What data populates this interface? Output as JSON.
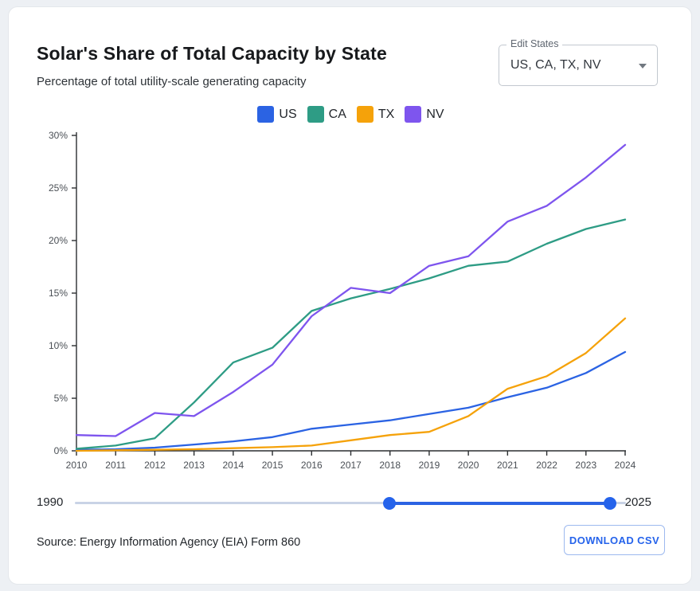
{
  "header": {
    "title": "Solar's Share of Total Capacity by State",
    "subtitle": "Percentage of total utility-scale generating capacity"
  },
  "edit_states": {
    "label": "Edit States",
    "value": "US, CA, TX, NV"
  },
  "chart_data": {
    "type": "line",
    "title": "Solar's Share of Total Capacity by State",
    "x": [
      2010,
      2011,
      2012,
      2013,
      2014,
      2015,
      2016,
      2017,
      2018,
      2019,
      2020,
      2021,
      2022,
      2023,
      2024
    ],
    "series": [
      {
        "name": "US",
        "color": "#2b63e3",
        "values": [
          0.1,
          0.15,
          0.3,
          0.6,
          0.9,
          1.3,
          2.1,
          2.5,
          2.9,
          3.5,
          4.1,
          5.1,
          6.0,
          7.4,
          9.4
        ]
      },
      {
        "name": "CA",
        "color": "#2e9c85",
        "values": [
          0.2,
          0.5,
          1.2,
          4.6,
          8.4,
          9.8,
          13.3,
          14.5,
          15.4,
          16.4,
          17.6,
          18.0,
          19.7,
          21.1,
          22.0
        ]
      },
      {
        "name": "TX",
        "color": "#f5a20a",
        "values": [
          0.0,
          0.05,
          0.1,
          0.15,
          0.25,
          0.35,
          0.5,
          1.0,
          1.5,
          1.8,
          3.3,
          5.9,
          7.1,
          9.3,
          12.6
        ]
      },
      {
        "name": "NV",
        "color": "#7e55ee",
        "values": [
          1.5,
          1.4,
          3.6,
          3.3,
          5.6,
          8.2,
          12.8,
          15.5,
          15.0,
          17.6,
          18.5,
          21.8,
          23.3,
          26.0,
          29.1
        ]
      }
    ],
    "ylim": [
      0,
      30
    ],
    "ytick_step": 5,
    "ytick_suffix": "%",
    "grid": false,
    "legend_position": "top"
  },
  "slider": {
    "min_label": "1990",
    "max_label": "2025",
    "selected_start": 2010,
    "selected_end": 2024,
    "accent_color": "#2b63e3"
  },
  "footer": {
    "source": "Source: Energy Information Agency (EIA) Form 860",
    "download_label": "DOWNLOAD CSV"
  }
}
